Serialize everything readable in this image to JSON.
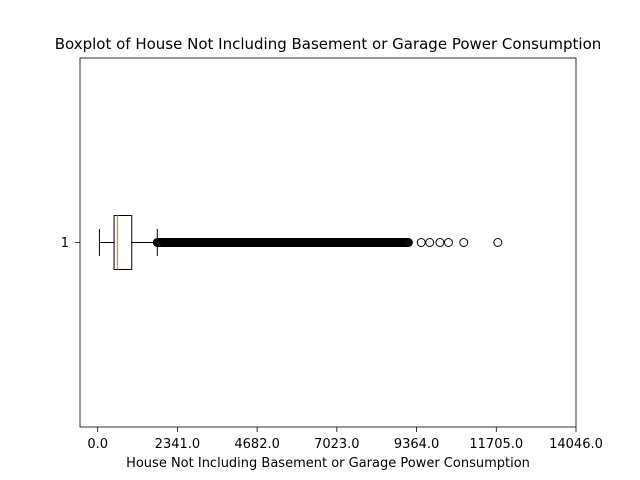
{
  "chart_data": {
    "type": "boxplot",
    "orientation": "horizontal",
    "title": "Boxplot of House Not Including Basement or Garage Power Consumption",
    "xlabel": "House Not Including Basement or Garage Power Consumption",
    "ylabel": "",
    "xlim": [
      -520,
      14046
    ],
    "x_ticks": [
      0,
      2341,
      4682,
      7023,
      9364,
      11705,
      14046
    ],
    "x_tick_labels": [
      "0.0",
      "2341.0",
      "4682.0",
      "7023.0",
      "9364.0",
      "11705.0",
      "14046.0"
    ],
    "y_tick_labels": [
      "1"
    ],
    "grid": false,
    "series": [
      {
        "category": "1",
        "whisker_low": 50,
        "q1": 480,
        "median": 580,
        "q3": 1000,
        "whisker_high": 1750,
        "outlier_dense_range": [
          1750,
          9150
        ],
        "outliers": [
          9500,
          9750,
          10050,
          10300,
          10750,
          11750
        ],
        "box_color": "#000000",
        "median_color": "#ff7f0e"
      }
    ]
  }
}
